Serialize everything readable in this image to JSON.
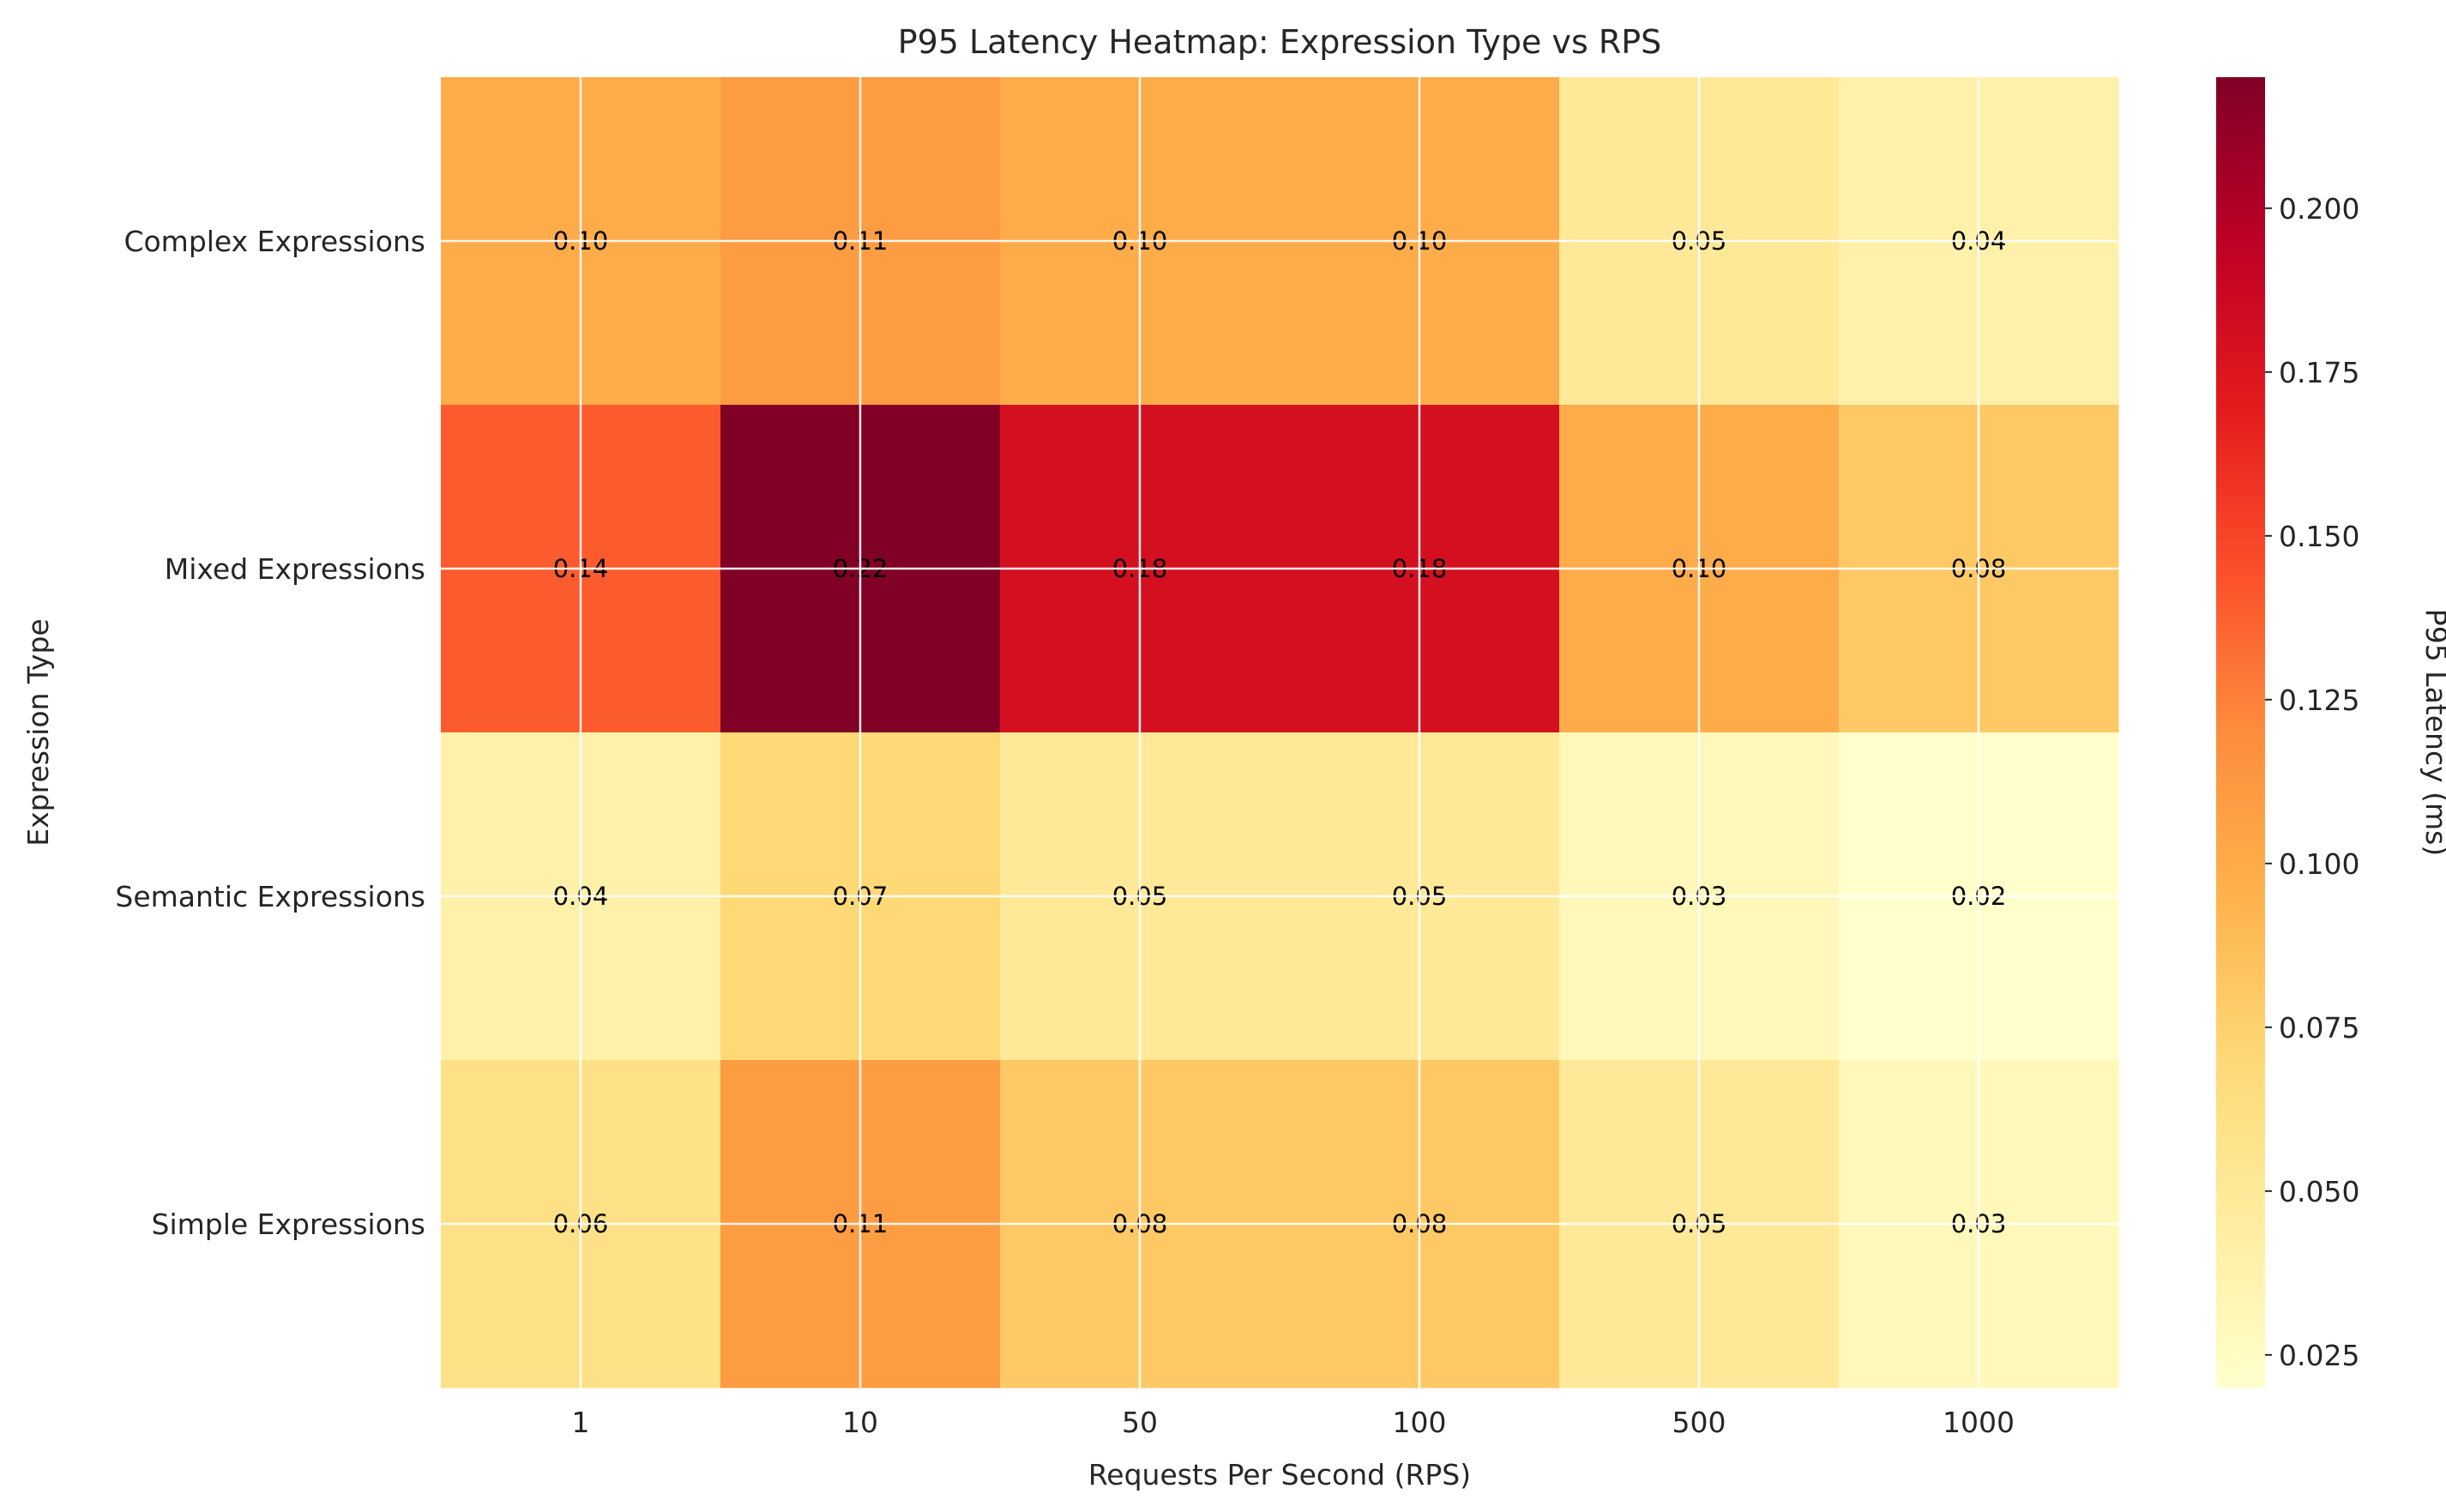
{
  "chart_data": {
    "type": "heatmap",
    "title": "P95 Latency Heatmap: Expression Type vs RPS",
    "xlabel": "Requests Per Second (RPS)",
    "ylabel": "Expression Type",
    "x_categories": [
      "1",
      "10",
      "50",
      "100",
      "500",
      "1000"
    ],
    "y_categories": [
      "Complex Expressions",
      "Mixed Expressions",
      "Semantic Expressions",
      "Simple Expressions"
    ],
    "values": [
      [
        0.1,
        0.11,
        0.1,
        0.1,
        0.05,
        0.04
      ],
      [
        0.14,
        0.22,
        0.18,
        0.18,
        0.1,
        0.08
      ],
      [
        0.04,
        0.07,
        0.05,
        0.05,
        0.03,
        0.02
      ],
      [
        0.06,
        0.11,
        0.08,
        0.08,
        0.05,
        0.03
      ]
    ],
    "cell_labels": [
      [
        "0.10",
        "0.11",
        "0.10",
        "0.10",
        "0.05",
        "0.04"
      ],
      [
        "0.14",
        "0.22",
        "0.18",
        "0.18",
        "0.10",
        "0.08"
      ],
      [
        "0.04",
        "0.07",
        "0.05",
        "0.05",
        "0.03",
        "0.02"
      ],
      [
        "0.06",
        "0.11",
        "0.08",
        "0.08",
        "0.05",
        "0.03"
      ]
    ],
    "colormap": "YlOrRd",
    "colorbar": {
      "label": "P95 Latency (ms)",
      "range": [
        0.02,
        0.22
      ],
      "ticks": [
        "0.025",
        "0.050",
        "0.075",
        "0.100",
        "0.125",
        "0.150",
        "0.175",
        "0.200"
      ]
    },
    "grid": true
  }
}
